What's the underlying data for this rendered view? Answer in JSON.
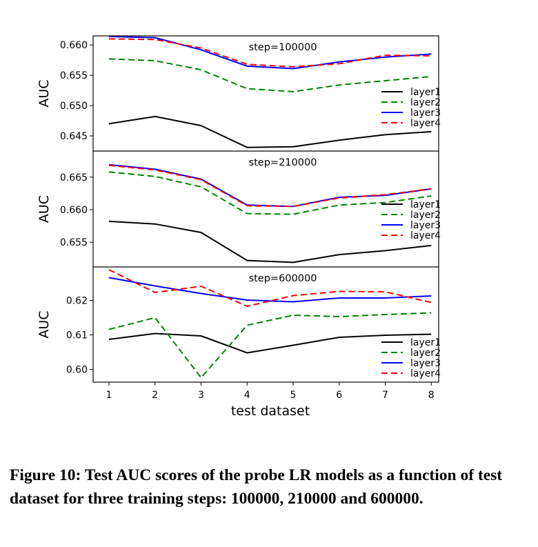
{
  "chart_data": {
    "type": "line",
    "xlabel": "test dataset",
    "ylabel": "AUC",
    "x": [
      1,
      2,
      3,
      4,
      5,
      6,
      7,
      8
    ],
    "legend_position": "right",
    "legend": [
      {
        "name": "layer1",
        "color": "#000000",
        "dash": "solid"
      },
      {
        "name": "layer2",
        "color": "#008000",
        "dash": "dashed"
      },
      {
        "name": "layer3",
        "color": "#0000ff",
        "dash": "solid"
      },
      {
        "name": "layer4",
        "color": "#ff0000",
        "dash": "dashed"
      }
    ],
    "panels": [
      {
        "title": "step=100000",
        "ylim": [
          0.6425,
          0.6615
        ],
        "yticks": [
          0.645,
          0.65,
          0.655,
          0.66
        ],
        "ytick_labels": [
          "0.645",
          "0.650",
          "0.655",
          "0.660"
        ],
        "series": [
          {
            "name": "layer1",
            "values": [
              0.647,
              0.6482,
              0.6467,
              0.6431,
              0.6432,
              0.6443,
              0.6452,
              0.6457
            ]
          },
          {
            "name": "layer2",
            "values": [
              0.6577,
              0.6574,
              0.6559,
              0.6528,
              0.6523,
              0.6534,
              0.6541,
              0.6548
            ]
          },
          {
            "name": "layer3",
            "values": [
              0.6614,
              0.6612,
              0.6592,
              0.6565,
              0.6561,
              0.6572,
              0.658,
              0.6585
            ]
          },
          {
            "name": "layer4",
            "values": [
              0.661,
              0.6609,
              0.6595,
              0.6568,
              0.6564,
              0.6569,
              0.6583,
              0.6582
            ]
          }
        ]
      },
      {
        "title": "step=210000",
        "ylim": [
          0.6512,
          0.669
        ],
        "yticks": [
          0.655,
          0.66,
          0.665
        ],
        "ytick_labels": [
          "0.655",
          "0.660",
          "0.665"
        ],
        "series": [
          {
            "name": "layer1",
            "values": [
              0.6582,
              0.6578,
              0.6565,
              0.6522,
              0.6519,
              0.6531,
              0.6537,
              0.6545
            ]
          },
          {
            "name": "layer2",
            "values": [
              0.6658,
              0.6651,
              0.6635,
              0.6594,
              0.6593,
              0.6607,
              0.6611,
              0.6621
            ]
          },
          {
            "name": "layer3",
            "values": [
              0.6669,
              0.6662,
              0.6647,
              0.6607,
              0.6605,
              0.6619,
              0.6622,
              0.6632
            ]
          },
          {
            "name": "layer4",
            "values": [
              0.6668,
              0.6661,
              0.6646,
              0.6606,
              0.6605,
              0.6618,
              0.6623,
              0.6632
            ]
          }
        ]
      },
      {
        "title": "step=600000",
        "ylim": [
          0.5963,
          0.6297
        ],
        "yticks": [
          0.6,
          0.61,
          0.62
        ],
        "ytick_labels": [
          "0.60",
          "0.61",
          "0.62"
        ],
        "series": [
          {
            "name": "layer1",
            "values": [
              0.6087,
              0.6104,
              0.6097,
              0.6048,
              0.607,
              0.6093,
              0.6099,
              0.6102
            ]
          },
          {
            "name": "layer2",
            "values": [
              0.6116,
              0.615,
              0.5976,
              0.6128,
              0.6157,
              0.6153,
              0.6159,
              0.6164
            ]
          },
          {
            "name": "layer3",
            "values": [
              0.6266,
              0.6242,
              0.622,
              0.6201,
              0.6196,
              0.6207,
              0.6207,
              0.6213
            ]
          },
          {
            "name": "layer4",
            "values": [
              0.6289,
              0.6223,
              0.6241,
              0.6183,
              0.6214,
              0.6226,
              0.6225,
              0.6194
            ]
          }
        ]
      }
    ]
  },
  "caption": "Figure 10: Test AUC scores of the probe LR models as a function of test dataset for three training steps: 100000, 210000 and 600000."
}
